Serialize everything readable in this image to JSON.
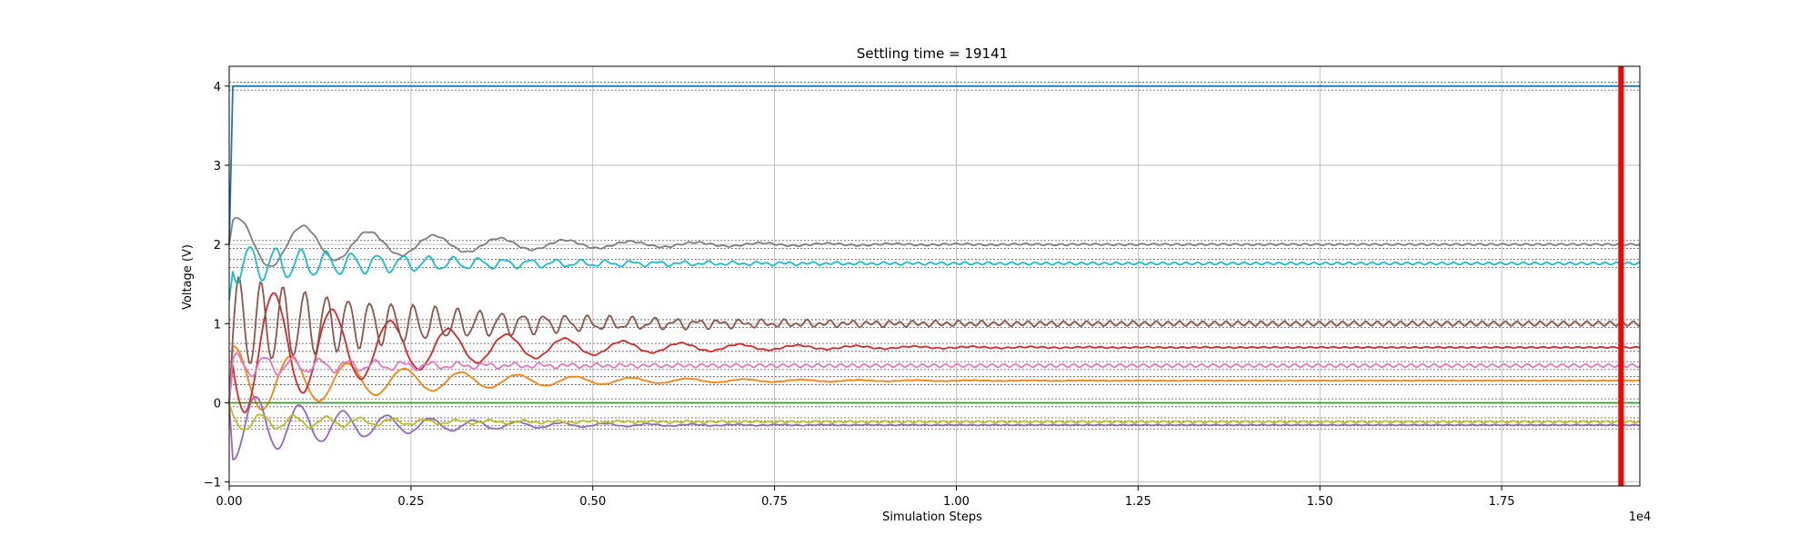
{
  "chart_data": {
    "type": "line",
    "title": "Settling time = 19141",
    "xlabel": "Simulation Steps",
    "ylabel": "Voltage (V)",
    "x_offset_label": "1e4",
    "xlim": [
      0,
      19400
    ],
    "ylim": [
      -1.05,
      4.25
    ],
    "x_ticks": [
      0,
      2500,
      5000,
      7500,
      10000,
      12500,
      15000,
      17500
    ],
    "x_tick_labels": [
      "0.00",
      "0.25",
      "0.50",
      "0.75",
      "1.00",
      "1.25",
      "1.50",
      "1.75"
    ],
    "y_ticks": [
      -1,
      0,
      1,
      2,
      3,
      4
    ],
    "y_tick_labels": [
      "−1",
      "0",
      "1",
      "2",
      "3",
      "4"
    ],
    "grid": true,
    "settling_marker": {
      "x": 19141,
      "color": "#ff0000"
    },
    "tolerance_band": 0.05,
    "series": [
      {
        "color": "#1f77b4",
        "start": 2.0,
        "target": 4.0,
        "amp": 0,
        "decay": 1,
        "ripple": 0
      },
      {
        "color": "#ff7f0e",
        "start": 0.0,
        "target": 0.28,
        "amp": 0.45,
        "decay": 0.00045,
        "ripple": 0.003,
        "period": 780
      },
      {
        "color": "#2ca02c",
        "start": 0.0,
        "target": 0.0,
        "amp": 0,
        "decay": 1,
        "ripple": 0
      },
      {
        "color": "#d62728",
        "start": 0.0,
        "target": 0.7,
        "amp": 0.9,
        "decay": 0.00045,
        "ripple": 0.008,
        "period": 800
      },
      {
        "color": "#9467bd",
        "start": 0.0,
        "target": -0.28,
        "amp": 0.45,
        "decay": 0.0006,
        "ripple": 0.005,
        "period": 600
      },
      {
        "color": "#8c564b",
        "start": 0.0,
        "target": 1.0,
        "amp": 0.6,
        "decay": 0.0004,
        "ripple": 0.03,
        "period": 300
      },
      {
        "color": "#e377c2",
        "start": 0.0,
        "target": 0.47,
        "amp": 0.15,
        "decay": 0.0005,
        "ripple": 0.02,
        "period": 380
      },
      {
        "color": "#7f7f7f",
        "start": 2.0,
        "target": 2.0,
        "amp": 0.35,
        "decay": 0.0004,
        "ripple": 0.01,
        "period": 900
      },
      {
        "color": "#bcbd22",
        "start": 0.0,
        "target": -0.24,
        "amp": 0.12,
        "decay": 0.0005,
        "ripple": 0.012,
        "period": 450
      },
      {
        "color": "#17becf",
        "start": 1.3,
        "target": 1.76,
        "amp": 0.25,
        "decay": 0.0004,
        "ripple": 0.015,
        "period": 350
      }
    ]
  }
}
